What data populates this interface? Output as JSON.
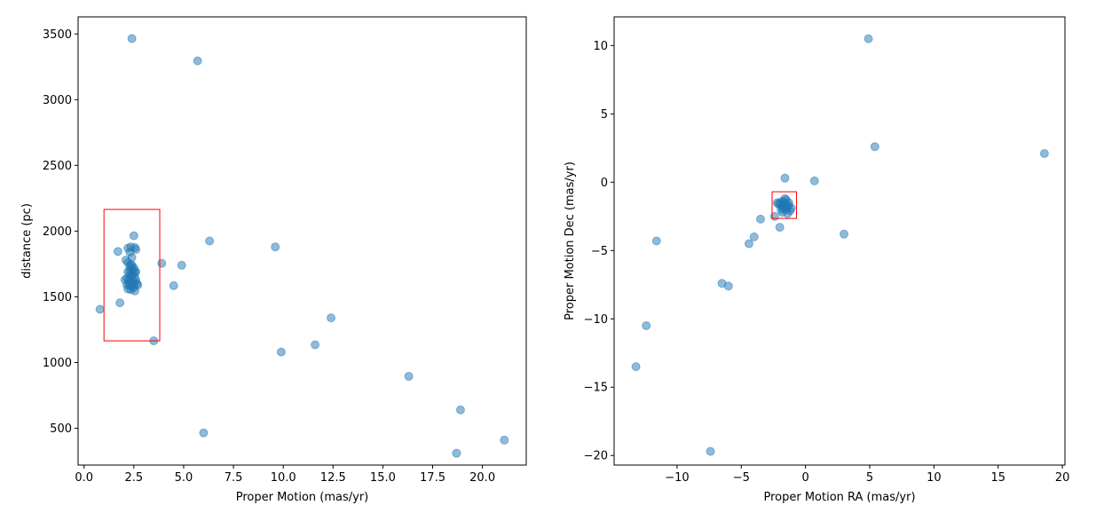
{
  "chart_data": [
    {
      "type": "scatter",
      "title": "",
      "xlabel": "Proper Motion (mas/yr)",
      "ylabel": "distance (pc)",
      "xlim": [
        -0.3,
        22.2
      ],
      "ylim": [
        220,
        3630
      ],
      "xticks": [
        {
          "value": 0,
          "label": "0.0"
        },
        {
          "value": 2.5,
          "label": "2.5"
        },
        {
          "value": 5,
          "label": "5.0"
        },
        {
          "value": 7.5,
          "label": "7.5"
        },
        {
          "value": 10,
          "label": "10.0"
        },
        {
          "value": 12.5,
          "label": "12.5"
        },
        {
          "value": 15,
          "label": "15.0"
        },
        {
          "value": 17.5,
          "label": "17.5"
        },
        {
          "value": 20,
          "label": "20.0"
        }
      ],
      "yticks": [
        {
          "value": 500,
          "label": "500"
        },
        {
          "value": 1000,
          "label": "1000"
        },
        {
          "value": 1500,
          "label": "1500"
        },
        {
          "value": 2000,
          "label": "2000"
        },
        {
          "value": 2500,
          "label": "2500"
        },
        {
          "value": 3000,
          "label": "3000"
        },
        {
          "value": 3500,
          "label": "3500"
        }
      ],
      "point_color": "#1f77b4",
      "points": [
        [
          2.4,
          3465
        ],
        [
          5.7,
          3295
        ],
        [
          2.5,
          1965
        ],
        [
          1.7,
          1845
        ],
        [
          2.2,
          1870
        ],
        [
          2.35,
          1880
        ],
        [
          2.55,
          1875
        ],
        [
          2.6,
          1860
        ],
        [
          2.3,
          1840
        ],
        [
          2.4,
          1800
        ],
        [
          2.1,
          1780
        ],
        [
          2.2,
          1760
        ],
        [
          2.4,
          1740
        ],
        [
          2.5,
          1720
        ],
        [
          2.2,
          1690
        ],
        [
          2.3,
          1700
        ],
        [
          2.6,
          1690
        ],
        [
          2.45,
          1680
        ],
        [
          2.3,
          1670
        ],
        [
          2.4,
          1660
        ],
        [
          2.55,
          1650
        ],
        [
          2.15,
          1640
        ],
        [
          2.25,
          1630
        ],
        [
          2.35,
          1620
        ],
        [
          2.5,
          1610
        ],
        [
          2.65,
          1600
        ],
        [
          2.3,
          1590
        ],
        [
          2.4,
          1580
        ],
        [
          2.5,
          1570
        ],
        [
          2.2,
          1560
        ],
        [
          2.35,
          1555
        ],
        [
          2.55,
          1545
        ],
        [
          2.05,
          1630
        ],
        [
          2.6,
          1625
        ],
        [
          2.45,
          1710
        ],
        [
          2.3,
          1730
        ],
        [
          2.7,
          1590
        ],
        [
          2.45,
          1600
        ],
        [
          2.15,
          1590
        ],
        [
          2.55,
          1690
        ],
        [
          2.35,
          1745
        ],
        [
          2.25,
          1600
        ],
        [
          3.9,
          1755
        ],
        [
          4.9,
          1740
        ],
        [
          4.5,
          1585
        ],
        [
          6.3,
          1925
        ],
        [
          9.6,
          1880
        ],
        [
          0.8,
          1405
        ],
        [
          1.8,
          1455
        ],
        [
          3.5,
          1165
        ],
        [
          9.9,
          1080
        ],
        [
          11.6,
          1135
        ],
        [
          12.4,
          1340
        ],
        [
          16.3,
          895
        ],
        [
          18.9,
          640
        ],
        [
          21.1,
          410
        ],
        [
          18.7,
          310
        ],
        [
          6.0,
          465
        ]
      ],
      "highlight_box": {
        "x0": 1.0,
        "x1": 3.8,
        "y0": 1165,
        "y1": 2165,
        "color": "#ff0000"
      }
    },
    {
      "type": "scatter",
      "title": "",
      "xlabel": "Proper Motion RA (mas/yr)",
      "ylabel": "Proper Motion Dec (mas/yr)",
      "xlim": [
        -14.9,
        20.2
      ],
      "ylim": [
        -20.7,
        12.1
      ],
      "xticks": [
        {
          "value": -10,
          "label": "−10"
        },
        {
          "value": -5,
          "label": "−5"
        },
        {
          "value": 0,
          "label": "0"
        },
        {
          "value": 5,
          "label": "5"
        },
        {
          "value": 10,
          "label": "10"
        },
        {
          "value": 15,
          "label": "15"
        },
        {
          "value": 20,
          "label": "20"
        }
      ],
      "yticks": [
        {
          "value": 10,
          "label": "10"
        },
        {
          "value": 5,
          "label": "5"
        },
        {
          "value": 0,
          "label": "0"
        },
        {
          "value": -5,
          "label": "−5"
        },
        {
          "value": -10,
          "label": "−10"
        },
        {
          "value": -15,
          "label": "−15"
        },
        {
          "value": -20,
          "label": "−20"
        }
      ],
      "point_color": "#1f77b4",
      "points": [
        [
          4.9,
          10.5
        ],
        [
          5.4,
          2.6
        ],
        [
          18.6,
          2.1
        ],
        [
          -1.6,
          0.3
        ],
        [
          0.7,
          0.1
        ],
        [
          -1.5,
          -1.3
        ],
        [
          -1.8,
          -1.4
        ],
        [
          -2.0,
          -1.5
        ],
        [
          -1.3,
          -1.5
        ],
        [
          -1.6,
          -1.6
        ],
        [
          -1.9,
          -1.7
        ],
        [
          -1.4,
          -1.8
        ],
        [
          -1.7,
          -1.9
        ],
        [
          -2.1,
          -1.6
        ],
        [
          -1.5,
          -2.0
        ],
        [
          -1.2,
          -2.1
        ],
        [
          -1.8,
          -2.2
        ],
        [
          -1.4,
          -2.3
        ],
        [
          -1.6,
          -1.2
        ],
        [
          -1.9,
          -2.0
        ],
        [
          -1.3,
          -1.7
        ],
        [
          -1.7,
          -1.5
        ],
        [
          -2.2,
          -1.5
        ],
        [
          -1.5,
          -1.8
        ],
        [
          -1.1,
          -1.9
        ],
        [
          -1.8,
          -1.8
        ],
        [
          -2.4,
          -2.5
        ],
        [
          -3.5,
          -2.7
        ],
        [
          -2.0,
          -3.3
        ],
        [
          -4.0,
          -4.0
        ],
        [
          -4.4,
          -4.5
        ],
        [
          3.0,
          -3.8
        ],
        [
          -11.6,
          -4.3
        ],
        [
          -6.5,
          -7.4
        ],
        [
          -6.0,
          -7.6
        ],
        [
          -12.4,
          -10.5
        ],
        [
          -13.2,
          -13.5
        ],
        [
          -7.4,
          -19.7
        ]
      ],
      "highlight_box": {
        "x0": -2.6,
        "x1": -0.7,
        "y0": -2.65,
        "y1": -0.7,
        "color": "#ff0000"
      }
    }
  ]
}
